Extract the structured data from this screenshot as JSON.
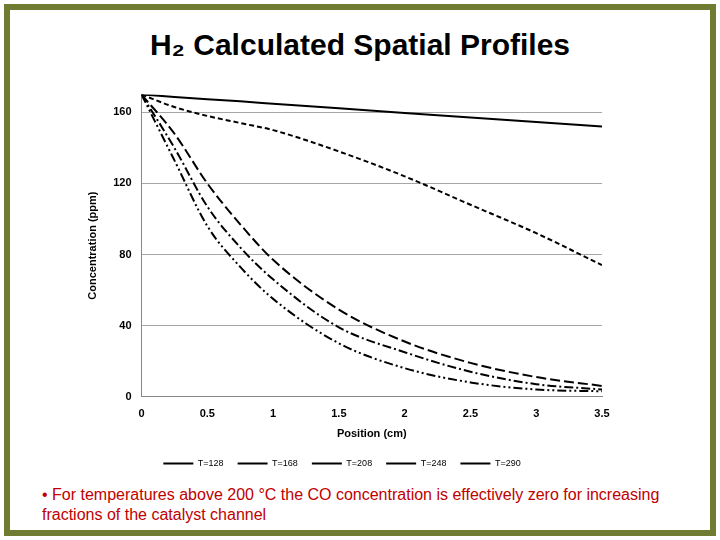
{
  "chart_data": {
    "type": "line",
    "title": "H₂ Calculated Spatial Profiles",
    "x_label": "Position (cm)",
    "y_label": "Concentration (ppm)",
    "annotation": "•  For temperatures above 200 °C the CO concentration is effectively zero for increasing fractions of the catalyst channel",
    "x": [
      0,
      0.25,
      0.5,
      0.75,
      1,
      1.5,
      2,
      2.5,
      3,
      3.5
    ],
    "series": [
      {
        "name": "T=128",
        "color": "#000000",
        "line_style": "solid",
        "values": [
          170,
          168.7,
          167.4,
          166.2,
          164.9,
          162.3,
          159.7,
          157.1,
          154.6,
          152
        ]
      },
      {
        "name": "T=168",
        "color": "#000000",
        "line_style": "dashed",
        "values": [
          170,
          163,
          158,
          154,
          150,
          138,
          124,
          108,
          92,
          74
        ]
      },
      {
        "name": "T=208",
        "color": "#000000",
        "line_style": "long_dash",
        "values": [
          170,
          148,
          120,
          97,
          77,
          49,
          31,
          19,
          11,
          6
        ]
      },
      {
        "name": "T=248",
        "color": "#000000",
        "line_style": "dash_dot",
        "values": [
          170,
          140,
          107,
          84,
          66,
          39,
          25,
          14,
          7,
          4
        ]
      },
      {
        "name": "T=290",
        "color": "#000000",
        "line_style": "dash_dot_dot",
        "values": [
          170,
          133,
          96,
          73,
          55,
          30,
          16,
          8,
          4,
          3
        ]
      }
    ],
    "xlim": [
      0,
      3.5
    ],
    "xticks": [
      0,
      0.5,
      1,
      1.5,
      2,
      2.5,
      3,
      3.5
    ],
    "ylim": [
      0,
      170
    ],
    "yticks": [
      0,
      40,
      80,
      120,
      160
    ],
    "grid": true,
    "legend": "bottom"
  }
}
